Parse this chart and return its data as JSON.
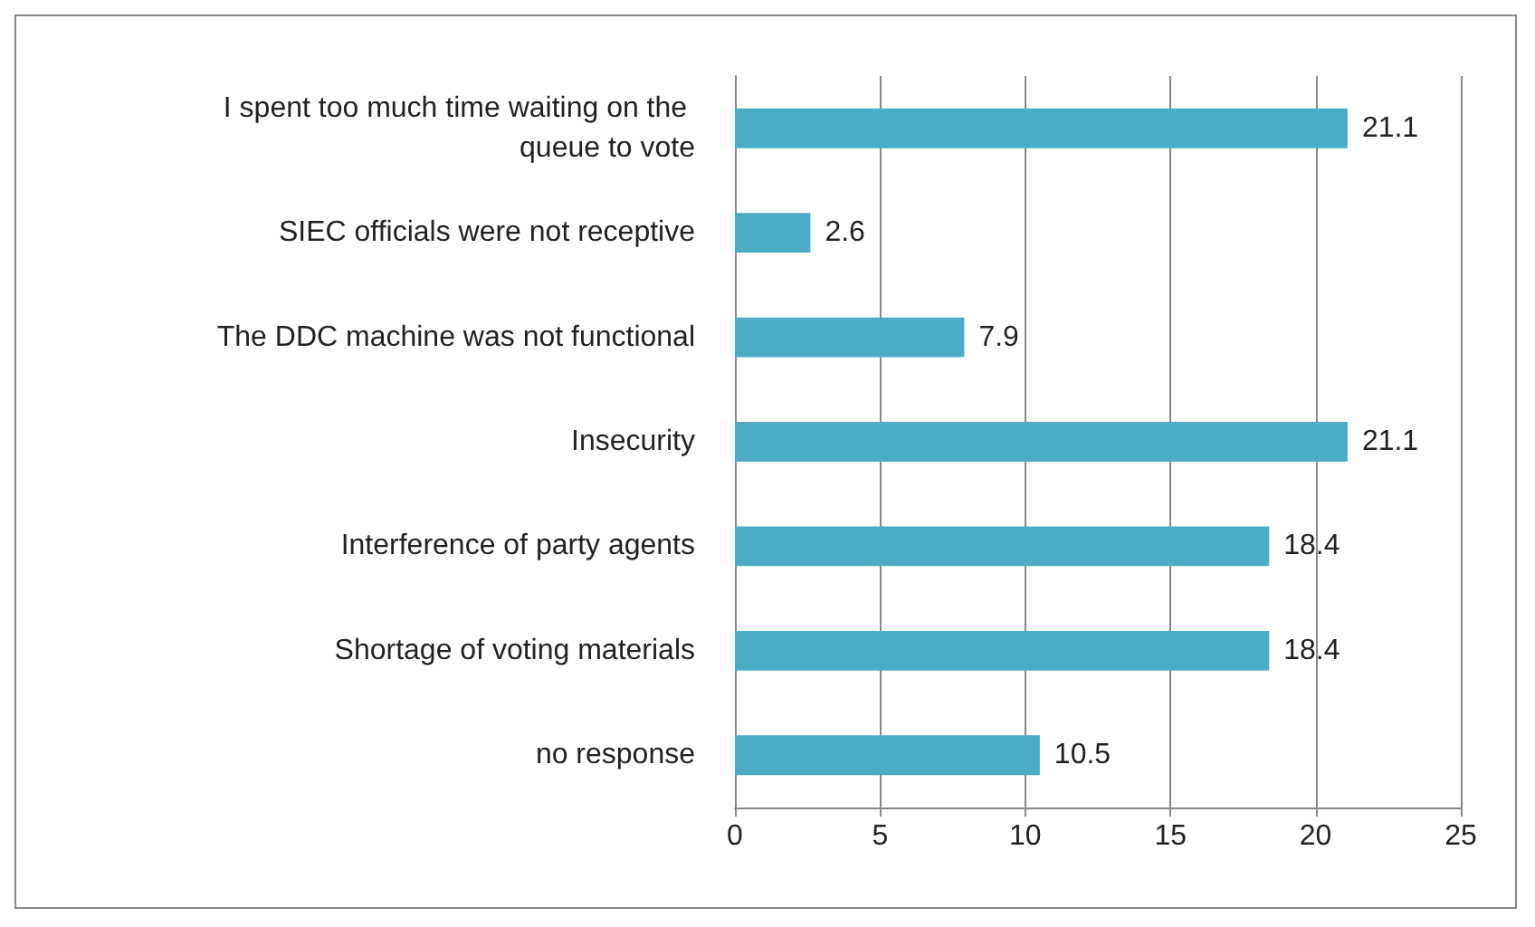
{
  "chart_data": {
    "type": "bar",
    "orientation": "horizontal",
    "categories": [
      "I spent too much time waiting on the queue to vote",
      "SIEC officials were not receptive",
      "The DDC machine was not functional",
      "Insecurity",
      "Interference of party agents",
      "Shortage of voting materials",
      "no response"
    ],
    "values": [
      21.1,
      2.6,
      7.9,
      21.1,
      18.4,
      18.4,
      10.5
    ],
    "color": "#4bacc6",
    "xlim": [
      0,
      25
    ],
    "xticks": [
      0,
      5,
      10,
      15,
      20,
      25
    ],
    "grid": "x",
    "data_labels": true
  }
}
